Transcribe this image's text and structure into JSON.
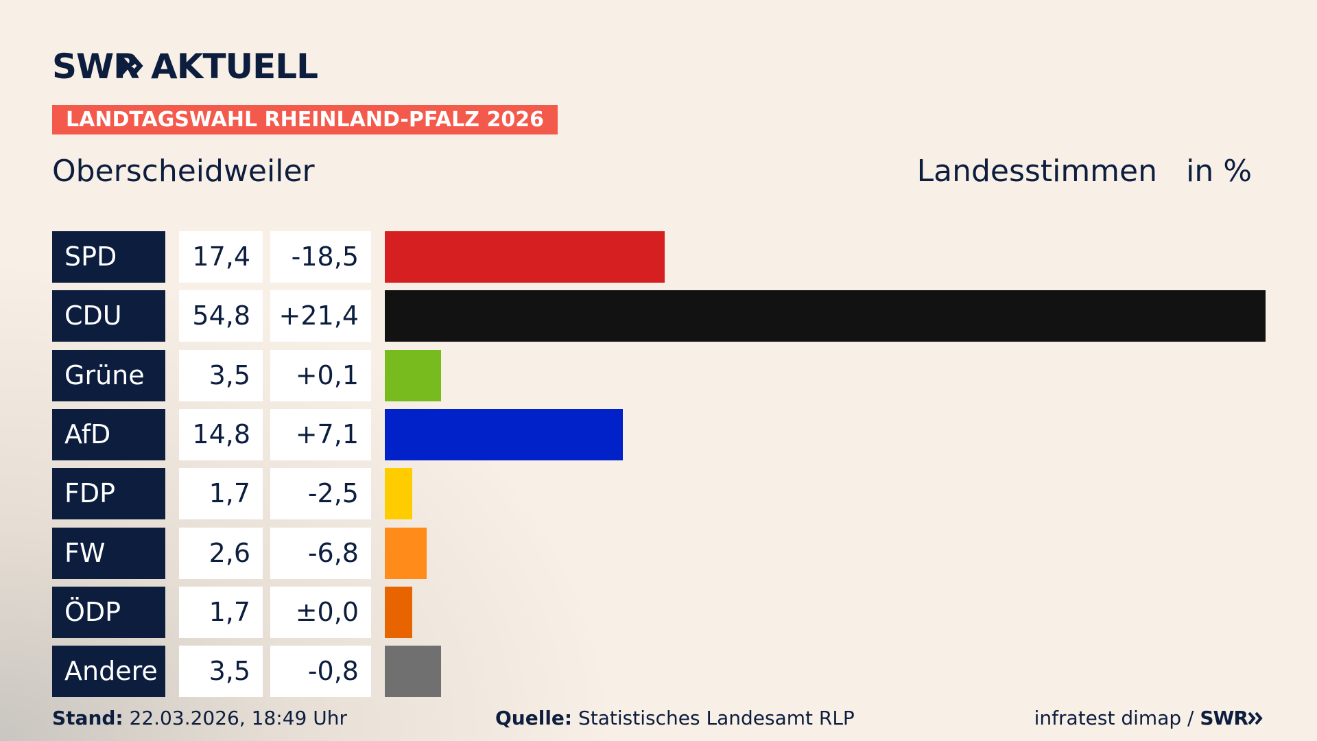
{
  "header": {
    "logo_left": "SWR",
    "logo_right": "AKTUELL",
    "banner": "LANDTAGSWAHL RHEINLAND-PFALZ 2026",
    "place": "Oberscheidweiler",
    "value_header": "Landesstimmen",
    "unit_header": "in %"
  },
  "chart_data": {
    "type": "bar",
    "categories": [
      "SPD",
      "CDU",
      "Grüne",
      "AfD",
      "FDP",
      "FW",
      "ÖDP",
      "Andere"
    ],
    "values": [
      17.4,
      54.8,
      3.5,
      14.8,
      1.7,
      2.6,
      1.7,
      3.5
    ],
    "value_labels": [
      "17,4",
      "54,8",
      "3,5",
      "14,8",
      "1,7",
      "2,6",
      "1,7",
      "3,5"
    ],
    "changes": [
      -18.5,
      21.4,
      0.1,
      7.1,
      -2.5,
      -6.8,
      0.0,
      -0.8
    ],
    "change_labels": [
      "-18,5",
      "+21,4",
      "+0,1",
      "+7,1",
      "-2,5",
      "-6,8",
      "±0,0",
      "-0,8"
    ],
    "colors": [
      "#d51f20",
      "#121212",
      "#77bb1f",
      "#0022c8",
      "#ffcc00",
      "#ff8c1a",
      "#e86400",
      "#707070"
    ]
  },
  "footer": {
    "stand_label": "Stand:",
    "stand": "22.03.2026, 18:49 Uhr",
    "source_label": "Quelle:",
    "source": "Statistisches Landesamt RLP",
    "credit": "infratest dimap /",
    "credit_logo": "SWR"
  }
}
